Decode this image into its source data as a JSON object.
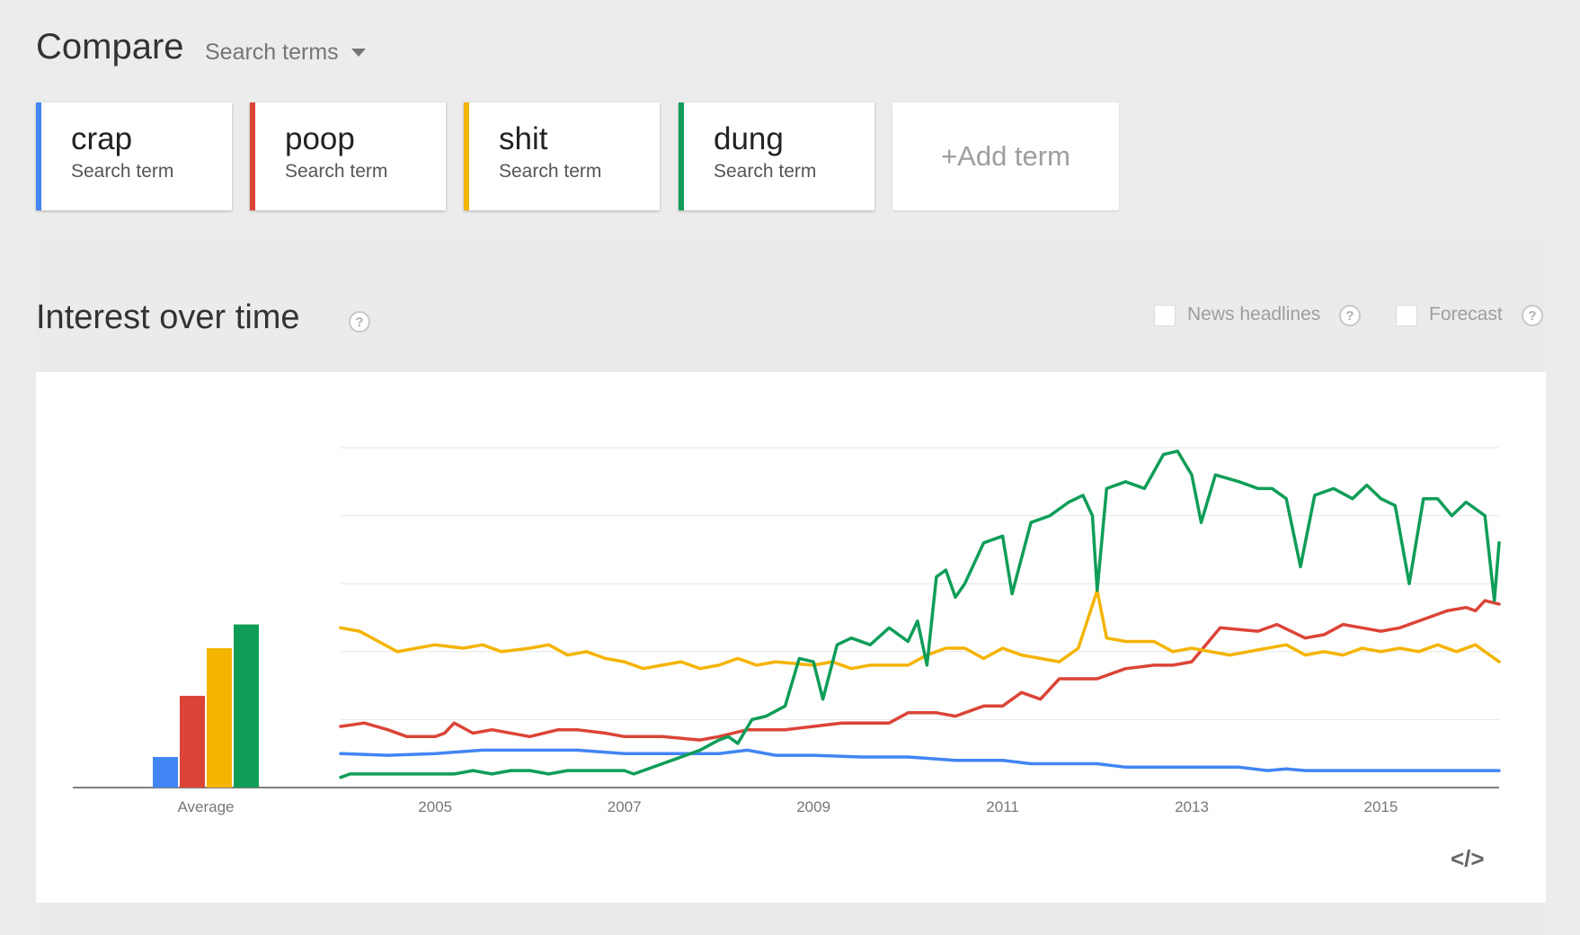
{
  "header": {
    "title": "Compare",
    "dropdown_label": "Search terms"
  },
  "terms": [
    {
      "name": "crap",
      "sub": "Search term",
      "color": "#4285f4"
    },
    {
      "name": "poop",
      "sub": "Search term",
      "color": "#db4437"
    },
    {
      "name": "shit",
      "sub": "Search term",
      "color": "#f4b400"
    },
    {
      "name": "dung",
      "sub": "Search term",
      "color": "#0f9d58"
    }
  ],
  "add_term_label": "+Add term",
  "section": {
    "title": "Interest over time",
    "help": "?",
    "news_label": "News headlines",
    "forecast_label": "Forecast"
  },
  "embed_label": "</>",
  "chart_data": {
    "type": "line",
    "average": {
      "label": "Average",
      "values": [
        9,
        27,
        41,
        48
      ]
    },
    "x_ticks": [
      "2005",
      "2007",
      "2009",
      "2011",
      "2013",
      "2015"
    ],
    "x_range": [
      2004.0,
      2016.25
    ],
    "ylim": [
      0,
      100
    ],
    "gridlines": [
      20,
      40,
      60,
      80,
      100
    ],
    "series": [
      {
        "name": "crap",
        "color": "#4285f4",
        "points": [
          [
            2004.0,
            10
          ],
          [
            2004.5,
            9.5
          ],
          [
            2005.0,
            10
          ],
          [
            2005.5,
            11
          ],
          [
            2006.0,
            11
          ],
          [
            2006.5,
            11
          ],
          [
            2007.0,
            10
          ],
          [
            2007.5,
            10
          ],
          [
            2008.0,
            10
          ],
          [
            2008.3,
            11
          ],
          [
            2008.6,
            9.5
          ],
          [
            2009.0,
            9.5
          ],
          [
            2009.5,
            9
          ],
          [
            2010.0,
            9
          ],
          [
            2010.5,
            8
          ],
          [
            2011.0,
            8
          ],
          [
            2011.3,
            7
          ],
          [
            2011.5,
            7
          ],
          [
            2012.0,
            7
          ],
          [
            2012.3,
            6
          ],
          [
            2013.0,
            6
          ],
          [
            2013.5,
            6
          ],
          [
            2013.8,
            5
          ],
          [
            2014.0,
            5.5
          ],
          [
            2014.2,
            5
          ],
          [
            2015.0,
            5
          ],
          [
            2016.25,
            5
          ]
        ]
      },
      {
        "name": "poop",
        "color": "#db4437",
        "points": [
          [
            2004.0,
            18
          ],
          [
            2004.25,
            19
          ],
          [
            2004.5,
            17
          ],
          [
            2004.7,
            15
          ],
          [
            2005.0,
            15
          ],
          [
            2005.1,
            16
          ],
          [
            2005.2,
            19
          ],
          [
            2005.4,
            16
          ],
          [
            2005.6,
            17
          ],
          [
            2006.0,
            15
          ],
          [
            2006.3,
            17
          ],
          [
            2006.5,
            17
          ],
          [
            2006.8,
            16
          ],
          [
            2007.0,
            15
          ],
          [
            2007.4,
            15
          ],
          [
            2007.8,
            14
          ],
          [
            2008.0,
            15
          ],
          [
            2008.3,
            17
          ],
          [
            2008.7,
            17
          ],
          [
            2009.0,
            18
          ],
          [
            2009.3,
            19
          ],
          [
            2009.6,
            19
          ],
          [
            2009.8,
            19
          ],
          [
            2010.0,
            22
          ],
          [
            2010.3,
            22
          ],
          [
            2010.5,
            21
          ],
          [
            2010.8,
            24
          ],
          [
            2011.0,
            24
          ],
          [
            2011.2,
            28
          ],
          [
            2011.4,
            26
          ],
          [
            2011.6,
            32
          ],
          [
            2012.0,
            32
          ],
          [
            2012.3,
            35
          ],
          [
            2012.6,
            36
          ],
          [
            2012.8,
            36
          ],
          [
            2013.0,
            37
          ],
          [
            2013.3,
            47
          ],
          [
            2013.7,
            46
          ],
          [
            2013.9,
            48
          ],
          [
            2014.2,
            44
          ],
          [
            2014.4,
            45
          ],
          [
            2014.6,
            48
          ],
          [
            2014.8,
            47
          ],
          [
            2015.0,
            46
          ],
          [
            2015.2,
            47
          ],
          [
            2015.5,
            50
          ],
          [
            2015.7,
            52
          ],
          [
            2015.9,
            53
          ],
          [
            2016.0,
            52
          ],
          [
            2016.1,
            55
          ],
          [
            2016.25,
            54
          ]
        ]
      },
      {
        "name": "shit",
        "color": "#f4b400",
        "points": [
          [
            2004.0,
            47
          ],
          [
            2004.2,
            46
          ],
          [
            2004.4,
            43
          ],
          [
            2004.6,
            40
          ],
          [
            2004.8,
            41
          ],
          [
            2005.0,
            42
          ],
          [
            2005.3,
            41
          ],
          [
            2005.5,
            42
          ],
          [
            2005.7,
            40
          ],
          [
            2006.0,
            41
          ],
          [
            2006.2,
            42
          ],
          [
            2006.4,
            39
          ],
          [
            2006.6,
            40
          ],
          [
            2006.8,
            38
          ],
          [
            2007.0,
            37
          ],
          [
            2007.2,
            35
          ],
          [
            2007.4,
            36
          ],
          [
            2007.6,
            37
          ],
          [
            2007.8,
            35
          ],
          [
            2008.0,
            36
          ],
          [
            2008.2,
            38
          ],
          [
            2008.4,
            36
          ],
          [
            2008.6,
            37
          ],
          [
            2009.0,
            36
          ],
          [
            2009.2,
            37
          ],
          [
            2009.4,
            35
          ],
          [
            2009.6,
            36
          ],
          [
            2010.0,
            36
          ],
          [
            2010.2,
            39
          ],
          [
            2010.4,
            41
          ],
          [
            2010.6,
            41
          ],
          [
            2010.8,
            38
          ],
          [
            2011.0,
            41
          ],
          [
            2011.2,
            39
          ],
          [
            2011.4,
            38
          ],
          [
            2011.6,
            37
          ],
          [
            2011.8,
            41
          ],
          [
            2012.0,
            58
          ],
          [
            2012.1,
            44
          ],
          [
            2012.3,
            43
          ],
          [
            2012.6,
            43
          ],
          [
            2012.8,
            40
          ],
          [
            2013.0,
            41
          ],
          [
            2013.2,
            40
          ],
          [
            2013.4,
            39
          ],
          [
            2013.6,
            40
          ],
          [
            2013.8,
            41
          ],
          [
            2014.0,
            42
          ],
          [
            2014.2,
            39
          ],
          [
            2014.4,
            40
          ],
          [
            2014.6,
            39
          ],
          [
            2014.8,
            41
          ],
          [
            2015.0,
            40
          ],
          [
            2015.2,
            41
          ],
          [
            2015.4,
            40
          ],
          [
            2015.6,
            42
          ],
          [
            2015.8,
            40
          ],
          [
            2016.0,
            42
          ],
          [
            2016.1,
            40
          ],
          [
            2016.25,
            37
          ]
        ]
      },
      {
        "name": "dung",
        "color": "#0f9d58",
        "points": [
          [
            2004.0,
            3
          ],
          [
            2004.1,
            4
          ],
          [
            2004.5,
            4
          ],
          [
            2005.0,
            4
          ],
          [
            2005.2,
            4
          ],
          [
            2005.4,
            5
          ],
          [
            2005.6,
            4
          ],
          [
            2005.8,
            5
          ],
          [
            2006.0,
            5
          ],
          [
            2006.2,
            4
          ],
          [
            2006.4,
            5
          ],
          [
            2006.6,
            5
          ],
          [
            2007.0,
            5
          ],
          [
            2007.1,
            4
          ],
          [
            2007.2,
            5
          ],
          [
            2007.5,
            8
          ],
          [
            2007.8,
            11
          ],
          [
            2008.0,
            14
          ],
          [
            2008.1,
            15
          ],
          [
            2008.2,
            13
          ],
          [
            2008.35,
            20
          ],
          [
            2008.5,
            21
          ],
          [
            2008.7,
            24
          ],
          [
            2008.85,
            38
          ],
          [
            2009.0,
            37
          ],
          [
            2009.1,
            26
          ],
          [
            2009.25,
            42
          ],
          [
            2009.4,
            44
          ],
          [
            2009.6,
            42
          ],
          [
            2009.8,
            47
          ],
          [
            2010.0,
            43
          ],
          [
            2010.1,
            49
          ],
          [
            2010.2,
            36
          ],
          [
            2010.3,
            62
          ],
          [
            2010.4,
            64
          ],
          [
            2010.5,
            56
          ],
          [
            2010.6,
            60
          ],
          [
            2010.8,
            72
          ],
          [
            2011.0,
            74
          ],
          [
            2011.1,
            57
          ],
          [
            2011.3,
            78
          ],
          [
            2011.5,
            80
          ],
          [
            2011.7,
            84
          ],
          [
            2011.85,
            86
          ],
          [
            2011.95,
            80
          ],
          [
            2012.0,
            58
          ],
          [
            2012.1,
            88
          ],
          [
            2012.3,
            90
          ],
          [
            2012.5,
            88
          ],
          [
            2012.7,
            98
          ],
          [
            2012.85,
            99
          ],
          [
            2013.0,
            92
          ],
          [
            2013.1,
            78
          ],
          [
            2013.25,
            92
          ],
          [
            2013.5,
            90
          ],
          [
            2013.7,
            88
          ],
          [
            2013.85,
            88
          ],
          [
            2014.0,
            85
          ],
          [
            2014.15,
            65
          ],
          [
            2014.3,
            86
          ],
          [
            2014.5,
            88
          ],
          [
            2014.7,
            85
          ],
          [
            2014.85,
            89
          ],
          [
            2015.0,
            85
          ],
          [
            2015.15,
            83
          ],
          [
            2015.3,
            60
          ],
          [
            2015.45,
            85
          ],
          [
            2015.6,
            85
          ],
          [
            2015.75,
            80
          ],
          [
            2015.9,
            84
          ],
          [
            2016.0,
            82
          ],
          [
            2016.1,
            80
          ],
          [
            2016.2,
            55
          ],
          [
            2016.25,
            72
          ]
        ]
      }
    ]
  }
}
